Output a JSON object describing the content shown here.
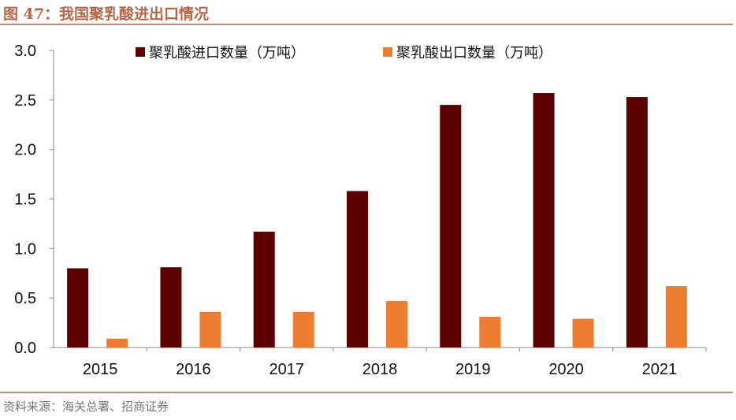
{
  "title": "图 47：我国聚乳酸进出口情况",
  "source": "资料来源：海关总署、招商证券",
  "chart_data": {
    "type": "bar",
    "categories": [
      "2015",
      "2016",
      "2017",
      "2018",
      "2019",
      "2020",
      "2021"
    ],
    "series": [
      {
        "name": "聚乳酸进口数量（万吨）",
        "color": "#5C0000",
        "values": [
          0.8,
          0.81,
          1.17,
          1.58,
          2.45,
          2.57,
          2.53
        ]
      },
      {
        "name": "聚乳酸出口数量（万吨）",
        "color": "#ED7D31",
        "values": [
          0.09,
          0.36,
          0.36,
          0.47,
          0.31,
          0.29,
          0.62
        ]
      }
    ],
    "ylim": [
      0,
      3.0
    ],
    "yticks": [
      "0.0",
      "0.5",
      "1.0",
      "1.5",
      "2.0",
      "2.5",
      "3.0"
    ],
    "grid": false,
    "legend": "top"
  }
}
